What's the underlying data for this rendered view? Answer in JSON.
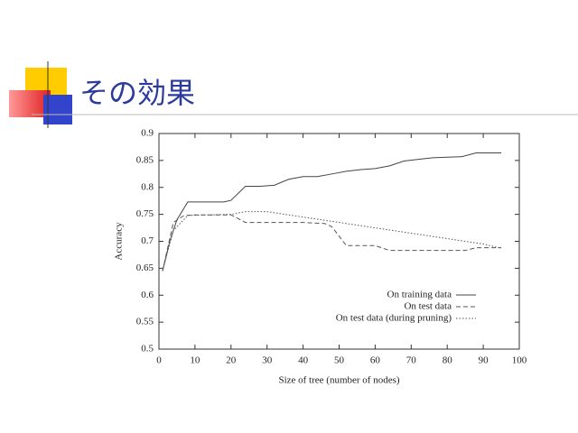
{
  "slide": {
    "title": "その効果"
  },
  "chart_data": {
    "type": "line",
    "xlabel": "Size of tree (number of nodes)",
    "ylabel": "Accuracy",
    "xlim": [
      0,
      100
    ],
    "xticks": [
      0,
      10,
      20,
      30,
      40,
      50,
      60,
      70,
      80,
      90,
      100
    ],
    "ylim": [
      0.5,
      0.9
    ],
    "yticks": [
      0.5,
      0.55,
      0.6,
      0.65,
      0.7,
      0.75,
      0.8,
      0.85,
      0.9
    ],
    "legend": "lower right",
    "grid": false,
    "series": [
      {
        "name": "On training data",
        "color": "#444444",
        "style": "solid",
        "x": [
          1,
          3,
          5,
          8,
          10,
          15,
          18,
          20,
          24,
          28,
          32,
          36,
          40,
          44,
          48,
          52,
          56,
          60,
          64,
          68,
          72,
          76,
          80,
          84,
          88,
          92,
          95
        ],
        "values": [
          0.645,
          0.7,
          0.74,
          0.773,
          0.773,
          0.773,
          0.773,
          0.776,
          0.802,
          0.802,
          0.804,
          0.815,
          0.82,
          0.82,
          0.825,
          0.83,
          0.833,
          0.835,
          0.84,
          0.849,
          0.852,
          0.855,
          0.856,
          0.857,
          0.864,
          0.864,
          0.864
        ]
      },
      {
        "name": "On test data",
        "color": "#555555",
        "style": "dashed",
        "x": [
          1,
          4,
          7,
          10,
          20,
          24,
          30,
          40,
          46,
          48,
          52,
          60,
          64,
          70,
          85,
          88,
          95
        ],
        "values": [
          0.645,
          0.735,
          0.748,
          0.749,
          0.749,
          0.735,
          0.735,
          0.735,
          0.733,
          0.727,
          0.692,
          0.692,
          0.683,
          0.683,
          0.683,
          0.688,
          0.688
        ]
      },
      {
        "name": "On test data (during pruning)",
        "color": "#555555",
        "style": "dotted",
        "x": [
          1,
          4,
          8,
          20,
          24,
          30,
          40,
          50,
          60,
          70,
          80,
          90,
          95
        ],
        "values": [
          0.645,
          0.72,
          0.748,
          0.75,
          0.755,
          0.755,
          0.745,
          0.735,
          0.725,
          0.715,
          0.705,
          0.695,
          0.687
        ]
      }
    ]
  }
}
